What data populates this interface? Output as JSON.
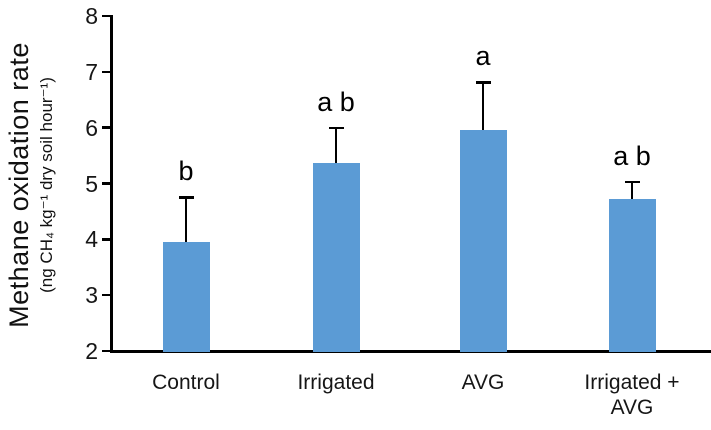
{
  "chart_data": {
    "type": "bar",
    "title": "",
    "ylabel": "Methane oxidation rate",
    "ylabel_units": "(ng CH₄ kg⁻¹ dry soil hour⁻¹)",
    "xlabel": "",
    "categories": [
      "Control",
      "Irrigated",
      "AVG",
      "Irrigated + AVG"
    ],
    "values": [
      3.95,
      5.37,
      5.96,
      4.73
    ],
    "errors": [
      0.8,
      0.62,
      0.85,
      0.3
    ],
    "sig_letters": [
      "b",
      "a b",
      "a",
      "a b"
    ],
    "ylim": [
      2,
      8
    ],
    "yticks": [
      2,
      3,
      4,
      5,
      6,
      7,
      8
    ],
    "bar_color": "#5B9BD5",
    "grid": false,
    "legend": null
  }
}
